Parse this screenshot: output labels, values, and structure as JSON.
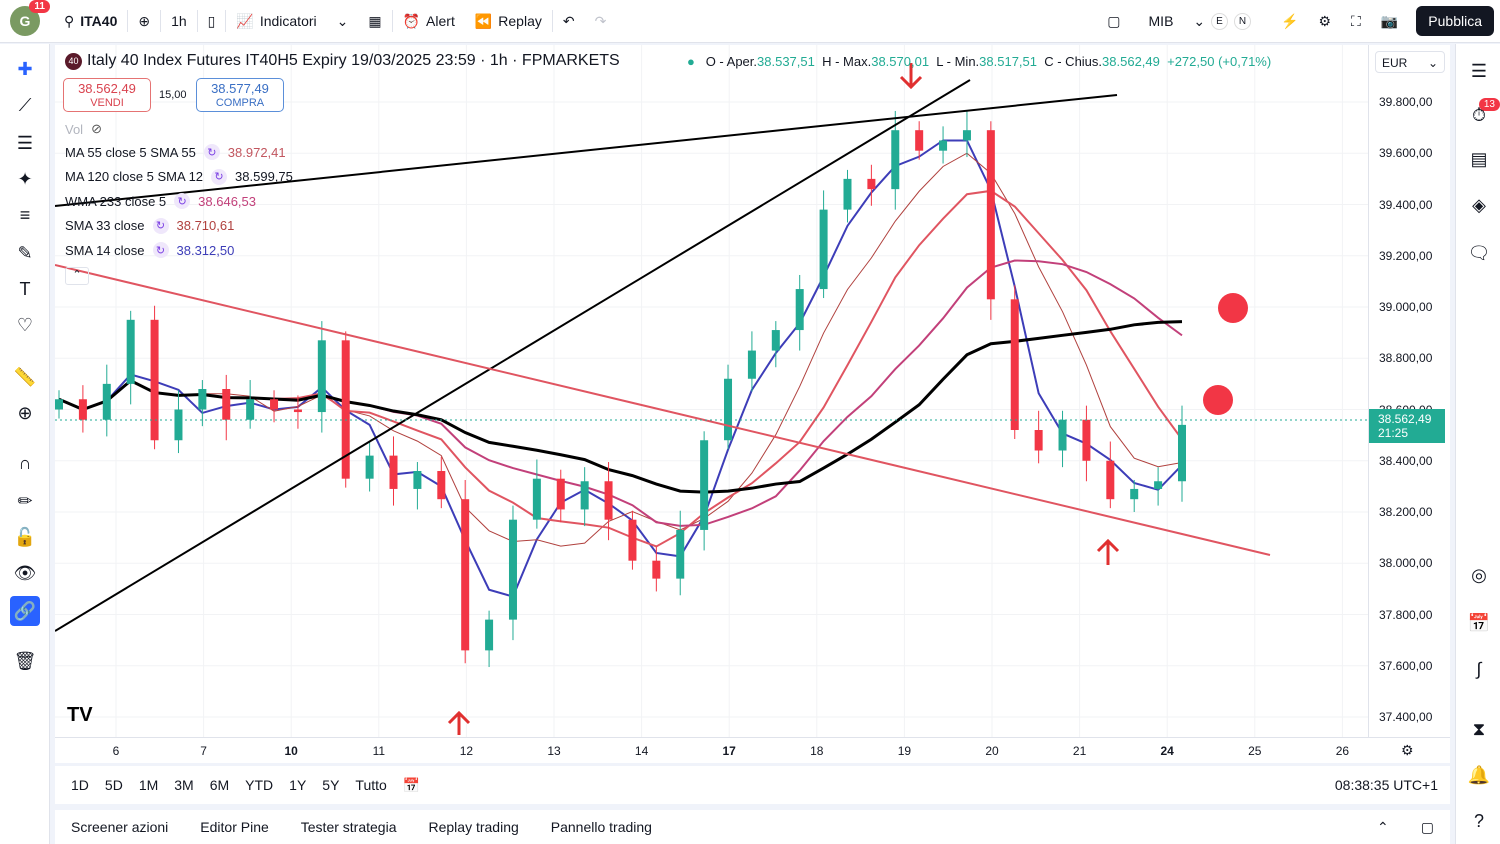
{
  "topbar": {
    "avatar": "G",
    "avatar_badge": "11",
    "symbol": "ITA40",
    "interval": "1h",
    "indicators": "Indicatori",
    "alert": "Alert",
    "replay": "Replay",
    "layout_name": "MIB",
    "e_label": "E",
    "n_label": "N",
    "publish": "Pubblica"
  },
  "legend": {
    "badge": "40",
    "title": "Italy 40 Index Futures IT40H5 Expiry 19/03/2025 23:59 · 1h · FPMARKETS",
    "o_label": "O - Aper.",
    "o": "38.537,51",
    "h_label": "H - Max.",
    "h": "38.570,01",
    "l_label": "L - Min.",
    "l": "38.517,51",
    "c_label": "C - Chius.",
    "c": "38.562,49",
    "change": "+272,50 (+0,71%)"
  },
  "trade": {
    "sell_price": "38.562,49",
    "sell_label": "VENDI",
    "spread": "15,00",
    "buy_price": "38.577,49",
    "buy_label": "COMPRA"
  },
  "vol_label": "Vol",
  "indicators": [
    {
      "name": "MA 55 close 5 SMA 55",
      "value": "38.972,41",
      "color": "#c2565f"
    },
    {
      "name": "MA 120 close 5 SMA 12",
      "value": "38.599,75",
      "color": "#131722"
    },
    {
      "name": "WMA 233 close 5",
      "value": "38.646,53",
      "color": "#c2407a"
    },
    {
      "name": "SMA 33 close",
      "value": "38.710,61",
      "color": "#b0413e"
    },
    {
      "name": "SMA 14 close",
      "value": "38.312,50",
      "color": "#3d3db8"
    }
  ],
  "currency": "EUR",
  "price_axis": [
    "39.800,00",
    "39.600,00",
    "39.400,00",
    "39.200,00",
    "39.000,00",
    "38.800,00",
    "38.600,00",
    "38.400,00",
    "38.200,00",
    "38.000,00",
    "37.800,00",
    "37.600,00",
    "37.400,00"
  ],
  "last_price": {
    "value": "38.562,49",
    "countdown": "21:25"
  },
  "time_axis": [
    "6",
    "7",
    "10",
    "11",
    "12",
    "13",
    "14",
    "17",
    "18",
    "19",
    "20",
    "21",
    "24",
    "25",
    "26"
  ],
  "ranges": [
    "1D",
    "5D",
    "1M",
    "3M",
    "6M",
    "YTD",
    "1Y",
    "5Y",
    "Tutto"
  ],
  "clock": "08:38:35 UTC+1",
  "bottom_tabs": [
    "Screener azioni",
    "Editor Pine",
    "Tester strategia",
    "Replay trading",
    "Pannello trading"
  ],
  "right_badge": "13",
  "chart_data": {
    "type": "candlestick",
    "ylim": [
      37400,
      39800
    ],
    "closes": [
      38640,
      38560,
      38700,
      38950,
      38480,
      38600,
      38680,
      38560,
      38640,
      38600,
      38590,
      38870,
      38330,
      38420,
      38290,
      38360,
      38250,
      37660,
      37780,
      38170,
      38330,
      38210,
      38320,
      38170,
      38010,
      37940,
      38130,
      38480,
      38720,
      38830,
      38910,
      39070,
      39380,
      39500,
      39460,
      39690,
      39610,
      39650,
      39690,
      39030,
      38520,
      38440,
      38560,
      38400,
      38250,
      38290,
      38320,
      38540
    ]
  }
}
